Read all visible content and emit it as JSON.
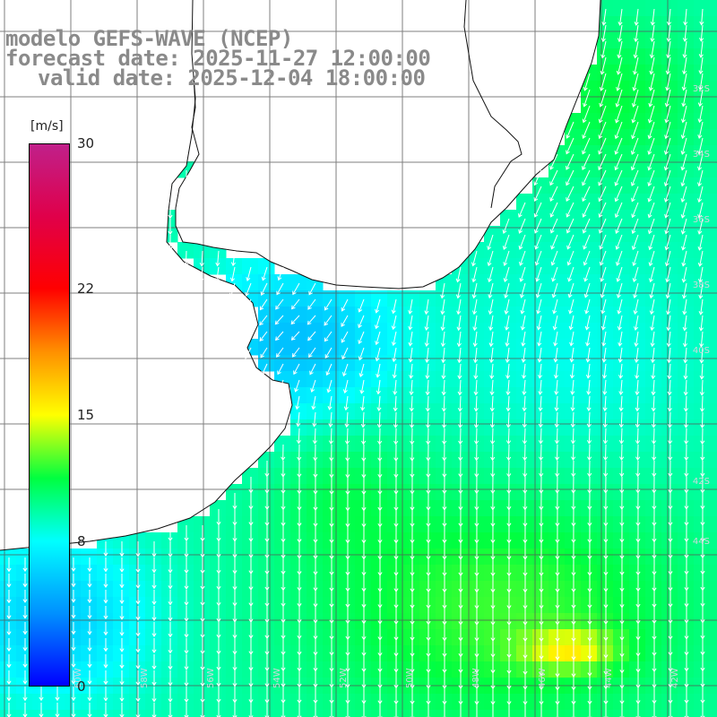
{
  "title": {
    "model": "modelo GEFS-WAVE (NCEP)",
    "forecast": "forecast date: 2025-11-27 12:00:00",
    "valid": "valid date: 2025-12-04 18:00:00"
  },
  "colorbar": {
    "unit": "[m/s]",
    "min": 0,
    "max": 30,
    "ticks": [
      {
        "value": 30,
        "label": "30"
      },
      {
        "value": 22,
        "label": "22"
      },
      {
        "value": 15,
        "label": "15"
      },
      {
        "value": 8,
        "label": "8"
      },
      {
        "value": 0,
        "label": "0"
      }
    ],
    "stops": [
      {
        "value": 0,
        "color": "#0000ff"
      },
      {
        "value": 4,
        "color": "#0090ff"
      },
      {
        "value": 8,
        "color": "#00ffff"
      },
      {
        "value": 11.5,
        "color": "#00ff40"
      },
      {
        "value": 15,
        "color": "#ffff00"
      },
      {
        "value": 18.5,
        "color": "#ff9000"
      },
      {
        "value": 22,
        "color": "#ff0000"
      },
      {
        "value": 26,
        "color": "#e0004a"
      },
      {
        "value": 30,
        "color": "#c0208a"
      }
    ]
  },
  "map": {
    "variable": "wind speed",
    "land_color": "#ffffff",
    "grid": true,
    "arrow_color": "#ffffff",
    "lat_labels": [
      "32S",
      "34S",
      "36S",
      "38S",
      "40S",
      "42S",
      "44S"
    ],
    "lon_labels": [
      "60W",
      "58W",
      "56W",
      "54W",
      "52W",
      "50W",
      "48W",
      "46W",
      "44W",
      "42W"
    ]
  }
}
